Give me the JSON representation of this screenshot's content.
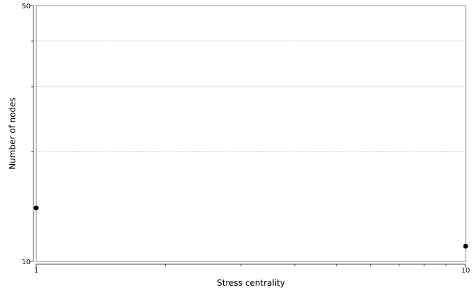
{
  "chart_data": {
    "type": "scatter",
    "title": "",
    "xlabel": "Stress centrality",
    "ylabel": "Number of nodes",
    "x_scale": "log",
    "y_scale": "log",
    "xlim": [
      1,
      10
    ],
    "ylim": [
      10,
      50
    ],
    "x_tick_labels": [
      "1",
      "10"
    ],
    "y_tick_labels": [
      "10",
      "50"
    ],
    "grid": "horizontal dotted",
    "legend": "none",
    "marker_color": "#000000",
    "grid_color": "#c8c8c8",
    "points": [
      {
        "x": 1,
        "y": 14
      },
      {
        "x": 10,
        "y": 11
      }
    ]
  }
}
